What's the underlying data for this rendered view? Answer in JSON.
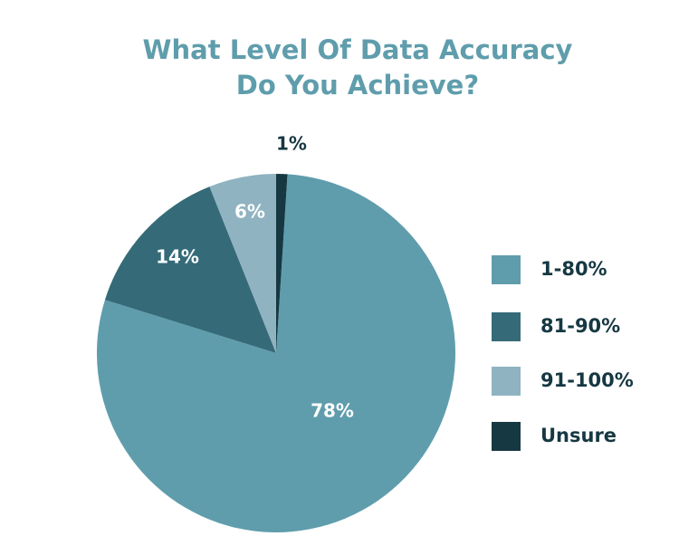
{
  "chart_data": {
    "type": "pie",
    "title": [
      "What Level Of Data Accuracy",
      "Do You Achieve?"
    ],
    "categories": [
      "1-80%",
      "81-90%",
      "91-100%",
      "Unsure"
    ],
    "values": [
      78,
      14,
      6,
      1
    ],
    "value_labels": [
      "78%",
      "14%",
      "6%",
      "1%"
    ],
    "colors": [
      "#5f9dac",
      "#356b78",
      "#8fb3c1",
      "#163842"
    ],
    "legend": "right"
  }
}
